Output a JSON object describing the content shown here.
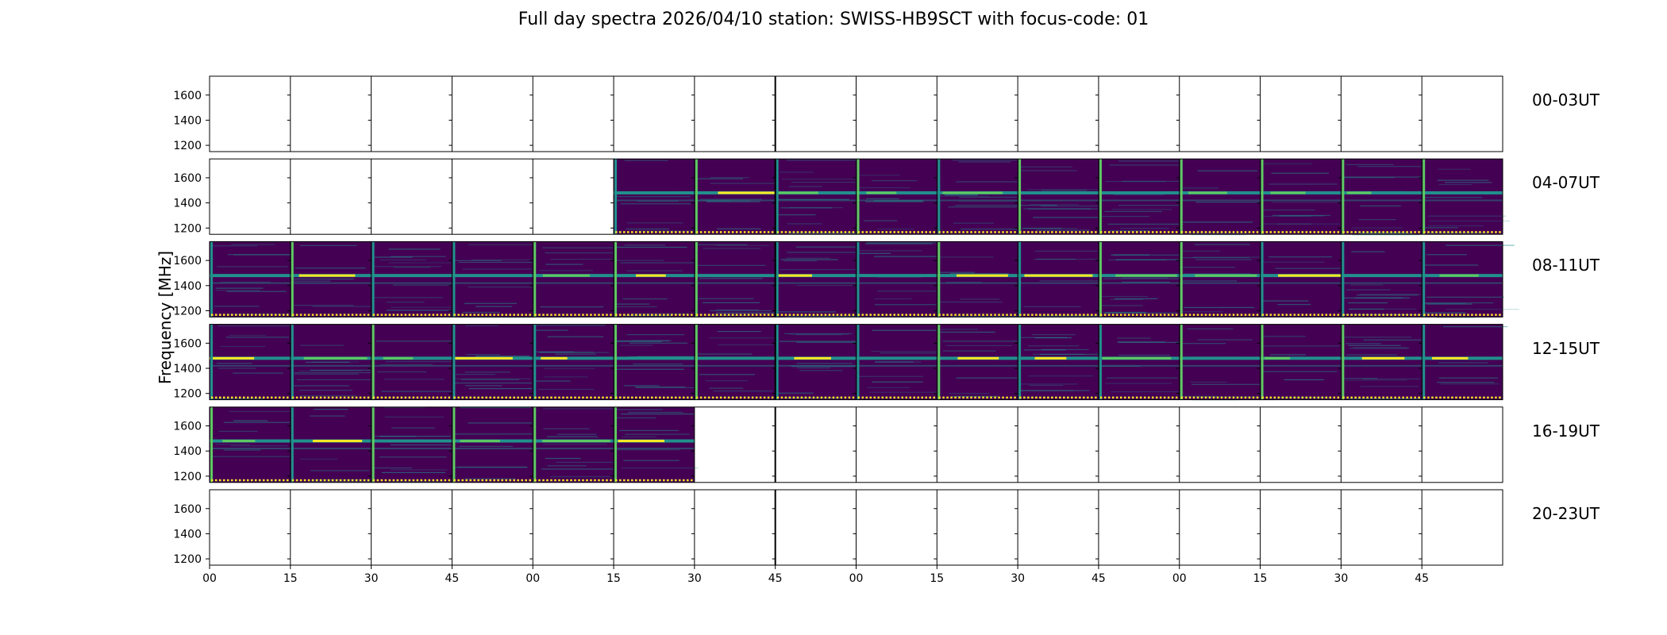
{
  "chart_data": {
    "type": "heatmap",
    "title": "Full day spectra 2026/04/10 station: SWISS-HB9SCT with focus-code: 01",
    "ylabel": "Frequency [MHz]",
    "xlabel": "",
    "y_ticks": [
      1200,
      1400,
      1600
    ],
    "ylim": [
      1150,
      1750
    ],
    "x_tick_labels": [
      "00",
      "15",
      "30",
      "45",
      "00",
      "15",
      "30",
      "45",
      "00",
      "15",
      "30",
      "45",
      "00",
      "15",
      "30",
      "45"
    ],
    "colormap": "viridis",
    "rows": [
      {
        "label": "00-03UT",
        "hours": [
          0,
          1,
          2,
          3
        ],
        "filled_from_slot": 16,
        "filled_to_slot": 16
      },
      {
        "label": "04-07UT",
        "hours": [
          4,
          5,
          6,
          7
        ],
        "filled_from_slot": 5,
        "filled_to_slot": 16
      },
      {
        "label": "08-11UT",
        "hours": [
          8,
          9,
          10,
          11
        ],
        "filled_from_slot": 0,
        "filled_to_slot": 16
      },
      {
        "label": "12-15UT",
        "hours": [
          12,
          13,
          14,
          15
        ],
        "filled_from_slot": 0,
        "filled_to_slot": 16
      },
      {
        "label": "16-19UT",
        "hours": [
          16,
          17,
          18,
          19
        ],
        "filled_from_slot": 0,
        "filled_to_slot": 6
      },
      {
        "label": "20-23UT",
        "hours": [
          20,
          21,
          22,
          23
        ],
        "filled_from_slot": 16,
        "filled_to_slot": 16
      }
    ],
    "slot_minutes": 15,
    "signal_band_mhz": 1480,
    "secondary_band_mhz": 1420,
    "colors": {
      "background": "#440154",
      "band_mid": "#21918c",
      "band_high": "#5ec962",
      "band_peak": "#fde725"
    }
  }
}
